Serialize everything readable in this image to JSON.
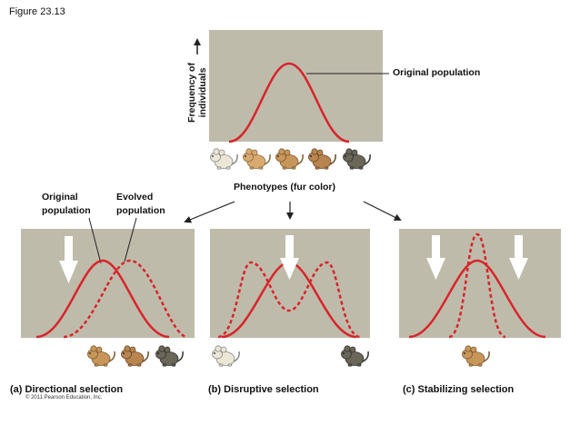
{
  "figure": {
    "label": "Figure 23.13"
  },
  "top_panel": {
    "ylabel_line1": "Frequency of",
    "ylabel_line2": "individuals",
    "xlabel": "Phenotypes (fur color)",
    "curve_label": "Original population"
  },
  "legend": {
    "original_line1": "Original",
    "original_line2": "population",
    "evolved_line1": "Evolved",
    "evolved_line2": "population"
  },
  "panels": {
    "directional": "(a) Directional selection",
    "disruptive": "(b) Disruptive selection",
    "stabilizing": "(c) Stabilizing selection"
  },
  "copyright": "© 2011 Pearson Education, Inc.",
  "colors": {
    "panel_bg": "#bfbbaa",
    "curve": "#d8242b",
    "arrow": "#ffffff"
  },
  "icons": [
    "mouse-icon",
    "selection-arrow-icon"
  ]
}
